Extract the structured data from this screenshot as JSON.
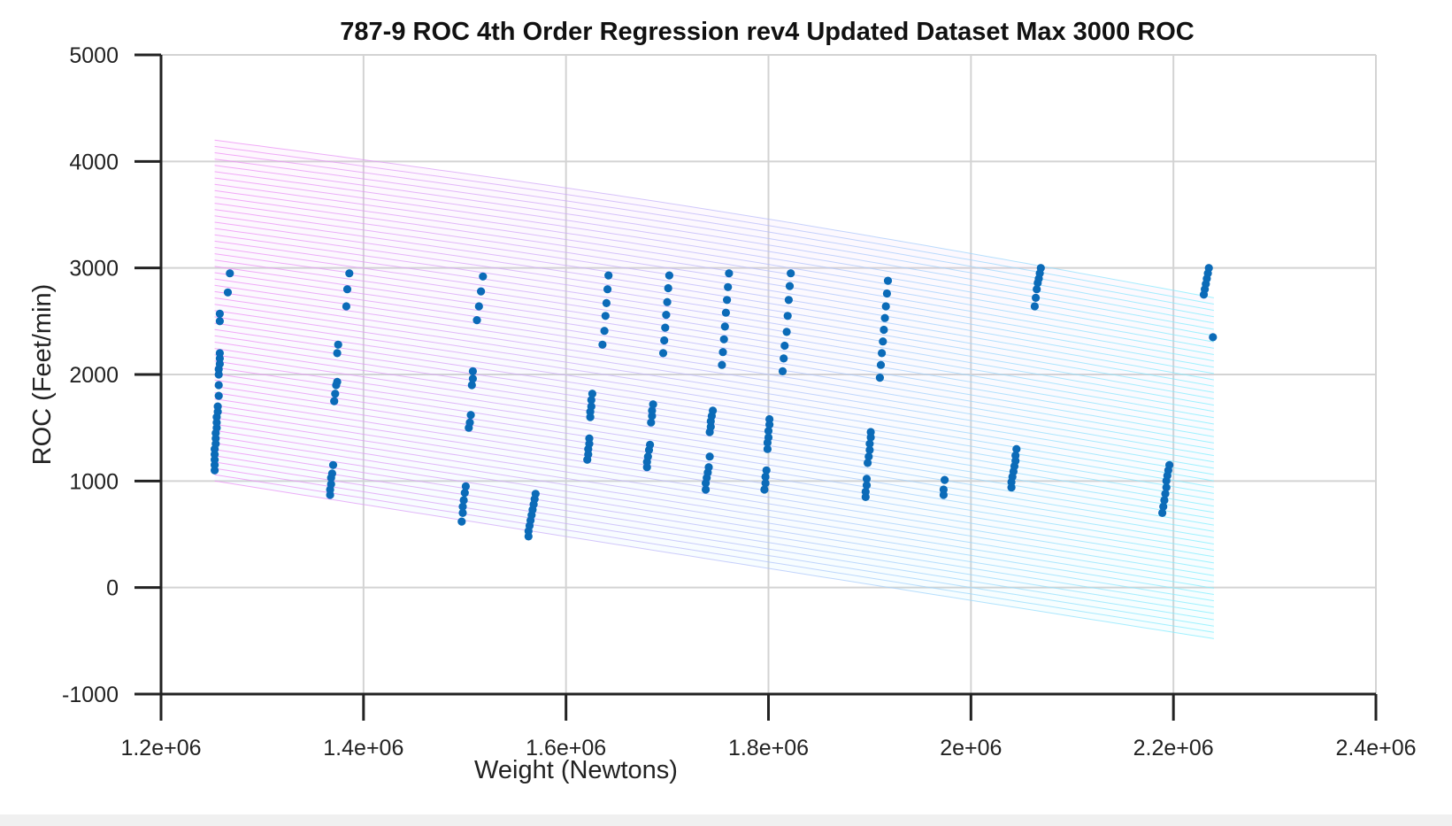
{
  "chart_data": {
    "type": "scatter",
    "title": "787-9 ROC 4th Order Regression rev4 Updated Dataset Max 3000 ROC",
    "xlabel": "Weight (Newtons)",
    "ylabel": "ROC (Feet/min)",
    "xlim": [
      1200000,
      2400000
    ],
    "ylim": [
      -1000,
      5000
    ],
    "x_ticks": [
      1200000,
      1400000,
      1600000,
      1800000,
      2000000,
      2200000,
      2400000
    ],
    "x_tick_labels": [
      "1.2e+06",
      "1.4e+06",
      "1.6e+06",
      "1.8e+06",
      "2e+06",
      "2.2e+06",
      "2.4e+06"
    ],
    "y_ticks": [
      -1000,
      0,
      1000,
      2000,
      3000,
      4000,
      5000
    ],
    "y_tick_labels": [
      "-1000",
      "0",
      "1000",
      "2000",
      "3000",
      "4000",
      "5000"
    ],
    "grid": true,
    "colors": {
      "points": "#0b6bb8",
      "surface_low": "#7ff0ff",
      "surface_high": "#f08cf5",
      "grid": "#d3d3d3",
      "axis": "#222222"
    },
    "regression_surface": {
      "x_range": [
        1253000,
        2240000
      ],
      "corners": {
        "left_bottom": 1000,
        "left_top": 4200,
        "right_bottom": -480,
        "right_top": 2720
      },
      "bow_top_mid": 80
    },
    "series": [
      {
        "points": [
          [
            1253000,
            1100
          ],
          [
            1253000,
            1150
          ],
          [
            1253000,
            1200
          ],
          [
            1253000,
            1250
          ],
          [
            1253000,
            1300
          ],
          [
            1254000,
            1350
          ],
          [
            1254000,
            1400
          ],
          [
            1254000,
            1450
          ],
          [
            1255000,
            1500
          ],
          [
            1255000,
            1550
          ],
          [
            1255000,
            1600
          ],
          [
            1256000,
            1650
          ],
          [
            1256000,
            1700
          ],
          [
            1257000,
            1800
          ],
          [
            1257000,
            1900
          ],
          [
            1257000,
            2000
          ],
          [
            1257000,
            2050
          ],
          [
            1258000,
            2100
          ],
          [
            1258000,
            2150
          ],
          [
            1258000,
            2200
          ],
          [
            1258000,
            2500
          ],
          [
            1258000,
            2570
          ],
          [
            1266000,
            2770
          ],
          [
            1268000,
            2950
          ],
          [
            1367000,
            870
          ],
          [
            1367000,
            920
          ],
          [
            1368000,
            970
          ],
          [
            1368000,
            1030
          ],
          [
            1369000,
            1070
          ],
          [
            1370000,
            1150
          ],
          [
            1371000,
            1750
          ],
          [
            1372000,
            1820
          ],
          [
            1373000,
            1900
          ],
          [
            1374000,
            1930
          ],
          [
            1374000,
            2200
          ],
          [
            1375000,
            2280
          ],
          [
            1383000,
            2640
          ],
          [
            1384000,
            2800
          ],
          [
            1386000,
            2950
          ],
          [
            1497000,
            620
          ],
          [
            1498000,
            700
          ],
          [
            1498000,
            760
          ],
          [
            1499000,
            820
          ],
          [
            1500000,
            890
          ],
          [
            1501000,
            950
          ],
          [
            1504000,
            1500
          ],
          [
            1505000,
            1550
          ],
          [
            1506000,
            1620
          ],
          [
            1507000,
            1900
          ],
          [
            1508000,
            1960
          ],
          [
            1508000,
            2030
          ],
          [
            1512000,
            2510
          ],
          [
            1514000,
            2640
          ],
          [
            1516000,
            2780
          ],
          [
            1518000,
            2920
          ],
          [
            1563000,
            480
          ],
          [
            1563000,
            530
          ],
          [
            1564000,
            580
          ],
          [
            1565000,
            630
          ],
          [
            1566000,
            680
          ],
          [
            1567000,
            730
          ],
          [
            1568000,
            780
          ],
          [
            1569000,
            830
          ],
          [
            1570000,
            880
          ],
          [
            1621000,
            1200
          ],
          [
            1622000,
            1250
          ],
          [
            1622000,
            1300
          ],
          [
            1623000,
            1350
          ],
          [
            1623000,
            1400
          ],
          [
            1624000,
            1600
          ],
          [
            1624000,
            1650
          ],
          [
            1625000,
            1700
          ],
          [
            1625000,
            1760
          ],
          [
            1626000,
            1820
          ],
          [
            1636000,
            2280
          ],
          [
            1638000,
            2410
          ],
          [
            1639000,
            2550
          ],
          [
            1640000,
            2670
          ],
          [
            1641000,
            2800
          ],
          [
            1642000,
            2930
          ],
          [
            1680000,
            1130
          ],
          [
            1680000,
            1180
          ],
          [
            1681000,
            1230
          ],
          [
            1682000,
            1290
          ],
          [
            1683000,
            1340
          ],
          [
            1684000,
            1550
          ],
          [
            1685000,
            1610
          ],
          [
            1685000,
            1660
          ],
          [
            1686000,
            1720
          ],
          [
            1696000,
            2200
          ],
          [
            1697000,
            2320
          ],
          [
            1698000,
            2440
          ],
          [
            1699000,
            2560
          ],
          [
            1700000,
            2680
          ],
          [
            1701000,
            2810
          ],
          [
            1702000,
            2930
          ],
          [
            1738000,
            920
          ],
          [
            1738000,
            980
          ],
          [
            1739000,
            1030
          ],
          [
            1740000,
            1080
          ],
          [
            1741000,
            1130
          ],
          [
            1742000,
            1230
          ],
          [
            1742000,
            1460
          ],
          [
            1743000,
            1510
          ],
          [
            1743000,
            1560
          ],
          [
            1744000,
            1610
          ],
          [
            1745000,
            1660
          ],
          [
            1754000,
            2090
          ],
          [
            1755000,
            2210
          ],
          [
            1756000,
            2330
          ],
          [
            1757000,
            2450
          ],
          [
            1758000,
            2580
          ],
          [
            1759000,
            2700
          ],
          [
            1760000,
            2820
          ],
          [
            1761000,
            2950
          ],
          [
            1796000,
            920
          ],
          [
            1797000,
            980
          ],
          [
            1797000,
            1040
          ],
          [
            1798000,
            1100
          ],
          [
            1799000,
            1300
          ],
          [
            1799000,
            1360
          ],
          [
            1800000,
            1410
          ],
          [
            1800000,
            1470
          ],
          [
            1801000,
            1530
          ],
          [
            1801000,
            1580
          ],
          [
            1814000,
            2030
          ],
          [
            1815000,
            2150
          ],
          [
            1816000,
            2270
          ],
          [
            1818000,
            2400
          ],
          [
            1819000,
            2550
          ],
          [
            1820000,
            2700
          ],
          [
            1821000,
            2830
          ],
          [
            1822000,
            2950
          ],
          [
            1896000,
            850
          ],
          [
            1896000,
            900
          ],
          [
            1897000,
            960
          ],
          [
            1897000,
            1020
          ],
          [
            1898000,
            1170
          ],
          [
            1899000,
            1230
          ],
          [
            1900000,
            1290
          ],
          [
            1900000,
            1350
          ],
          [
            1901000,
            1410
          ],
          [
            1901000,
            1460
          ],
          [
            1910000,
            1970
          ],
          [
            1911000,
            2090
          ],
          [
            1912000,
            2200
          ],
          [
            1913000,
            2310
          ],
          [
            1914000,
            2420
          ],
          [
            1915000,
            2530
          ],
          [
            1916000,
            2640
          ],
          [
            1917000,
            2760
          ],
          [
            1918000,
            2880
          ],
          [
            1973000,
            870
          ],
          [
            1973000,
            920
          ],
          [
            1974000,
            1010
          ],
          [
            2040000,
            940
          ],
          [
            2040000,
            990
          ],
          [
            2041000,
            1040
          ],
          [
            2042000,
            1090
          ],
          [
            2043000,
            1140
          ],
          [
            2044000,
            1190
          ],
          [
            2044000,
            1240
          ],
          [
            2045000,
            1300
          ],
          [
            2063000,
            2640
          ],
          [
            2064000,
            2720
          ],
          [
            2065000,
            2800
          ],
          [
            2066000,
            2860
          ],
          [
            2067000,
            2900
          ],
          [
            2068000,
            2950
          ],
          [
            2069000,
            3000
          ],
          [
            2189000,
            700
          ],
          [
            2190000,
            760
          ],
          [
            2191000,
            820
          ],
          [
            2192000,
            880
          ],
          [
            2193000,
            940
          ],
          [
            2193000,
            1000
          ],
          [
            2194000,
            1050
          ],
          [
            2195000,
            1100
          ],
          [
            2196000,
            1150
          ],
          [
            2230000,
            2750
          ],
          [
            2231000,
            2800
          ],
          [
            2232000,
            2850
          ],
          [
            2233000,
            2900
          ],
          [
            2234000,
            2950
          ],
          [
            2235000,
            3000
          ],
          [
            2239000,
            2350
          ]
        ]
      }
    ]
  }
}
